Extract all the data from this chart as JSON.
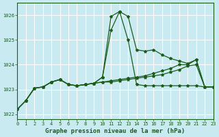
{
  "background_color": "#c8eaf0",
  "grid_color": "#ffffff",
  "line_color": "#1a5c1a",
  "title": "Graphe pression niveau de la mer (hPa)",
  "xlim": [
    0,
    23
  ],
  "ylim": [
    1021.8,
    1026.5
  ],
  "yticks": [
    1022,
    1023,
    1024,
    1025,
    1026
  ],
  "xticks": [
    0,
    1,
    2,
    3,
    4,
    5,
    6,
    7,
    8,
    9,
    10,
    11,
    12,
    13,
    14,
    15,
    16,
    17,
    18,
    19,
    20,
    21,
    22,
    23
  ],
  "xtick_labels": [
    "0",
    "1",
    "2",
    "3",
    "4",
    "5",
    "6",
    "7",
    "8",
    "9",
    "10",
    "11",
    "12",
    "13",
    "14",
    "15",
    "16",
    "17",
    "18",
    "19",
    "20",
    "21",
    "22",
    "23"
  ],
  "series1": [
    1022.2,
    1022.55,
    1023.05,
    1023.1,
    1023.3,
    1023.4,
    1023.2,
    1023.15,
    1023.2,
    1023.25,
    1023.5,
    1025.4,
    1026.15,
    1025.95,
    1024.6,
    1024.55,
    1024.6,
    1024.4,
    1024.25,
    1024.15,
    1024.05,
    1024.2,
    1023.1,
    1023.1
  ],
  "series2": [
    1022.2,
    1022.55,
    1023.05,
    1023.1,
    1023.3,
    1023.4,
    1023.2,
    1023.15,
    1023.2,
    1023.25,
    1023.5,
    1025.95,
    1026.15,
    1025.0,
    1023.2,
    1023.15,
    1023.15,
    1023.15,
    1023.15,
    1023.15,
    1023.15,
    1023.15,
    1023.1,
    1023.1
  ],
  "series3": [
    1022.2,
    1022.55,
    1023.05,
    1023.1,
    1023.3,
    1023.4,
    1023.2,
    1023.15,
    1023.2,
    1023.25,
    1023.3,
    1023.3,
    1023.35,
    1023.4,
    1023.45,
    1023.5,
    1023.55,
    1023.6,
    1023.7,
    1023.8,
    1023.95,
    1024.0,
    1023.1,
    1023.1
  ],
  "series4": [
    1022.2,
    1022.55,
    1023.05,
    1023.1,
    1023.3,
    1023.4,
    1023.2,
    1023.15,
    1023.2,
    1023.25,
    1023.3,
    1023.35,
    1023.4,
    1023.45,
    1023.5,
    1023.55,
    1023.65,
    1023.75,
    1023.85,
    1024.0,
    1024.0,
    1024.2,
    1023.1,
    1023.1
  ]
}
